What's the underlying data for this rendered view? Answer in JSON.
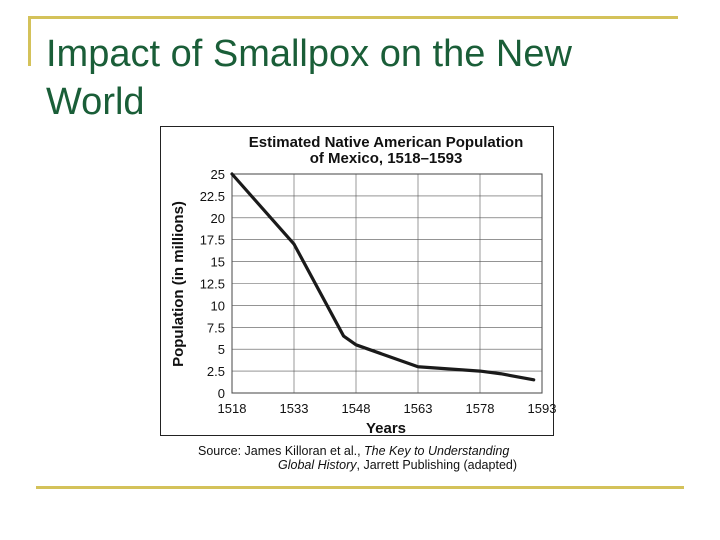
{
  "slide": {
    "title": "Impact of Smallpox on the New World",
    "accent_color": "#d4c25a",
    "title_color": "#1a5e38"
  },
  "source": {
    "line1_prefix": "Source: James Killoran et al., ",
    "line1_italic": "The Key to Understanding",
    "line2_italic": "Global History",
    "line2_suffix": ", Jarrett Publishing (adapted)"
  },
  "chart_data": {
    "type": "line",
    "title_line1": "Estimated Native American Population",
    "title_line2": "of Mexico, 1518–1593",
    "xlabel": "Years",
    "ylabel": "Population (in millions)",
    "xlim": [
      1518,
      1593
    ],
    "ylim": [
      0,
      25
    ],
    "x_ticks": [
      "1518",
      "1533",
      "1548",
      "1563",
      "1578",
      "1593"
    ],
    "y_ticks": [
      "0",
      "2.5",
      "5",
      "7.5",
      "10",
      "12.5",
      "15",
      "17.5",
      "20",
      "22.5",
      "25"
    ],
    "grid": true,
    "series": [
      {
        "x": [
          1518,
          1533,
          1545,
          1548,
          1563,
          1578,
          1583,
          1591
        ],
        "y": [
          25,
          17,
          6.5,
          5.5,
          3,
          2.5,
          2.2,
          1.5
        ]
      }
    ]
  }
}
